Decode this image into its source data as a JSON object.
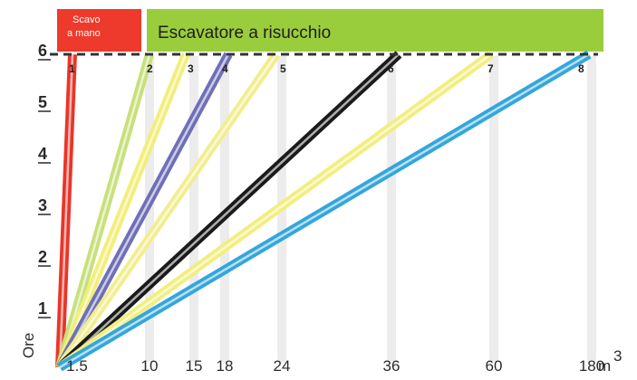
{
  "header": {
    "manual_label_line1": "Scavo",
    "manual_label_line2": "a mano",
    "excavator_label": "Escavatore a risucchio",
    "manual_color": "#ee3a2c",
    "excavator_color": "#9acd3c"
  },
  "chart_data": {
    "type": "line",
    "ylabel": "Ore",
    "x_unit": "m",
    "x_unit_exp": "3",
    "x_ticks": [
      "1.5",
      "10",
      "15",
      "18",
      "24",
      "36",
      "60",
      "180"
    ],
    "y_ticks": [
      "1",
      "2",
      "3",
      "4",
      "5",
      "6"
    ],
    "ylim": [
      0,
      6
    ],
    "grid_columns": [
      "10",
      "15",
      "18",
      "24",
      "36",
      "60",
      "180"
    ],
    "series": [
      {
        "name": "1",
        "color": "#e8362a",
        "x_at_6h": "1.5"
      },
      {
        "name": "2",
        "color": "#c8e07a",
        "x_at_6h": "10"
      },
      {
        "name": "3",
        "color": "#f2ee7a",
        "x_at_6h": "15"
      },
      {
        "name": "4",
        "color": "#6f6fb8",
        "x_at_6h": "18"
      },
      {
        "name": "5",
        "color": "#f2ee90",
        "x_at_6h": "24"
      },
      {
        "name": "6",
        "color": "#1a1a1a",
        "x_at_6h": "36"
      },
      {
        "name": "7",
        "color": "#f2ee80",
        "x_at_6h": "60"
      },
      {
        "name": "8",
        "color": "#33a6dc",
        "x_at_6h": "180"
      }
    ]
  }
}
